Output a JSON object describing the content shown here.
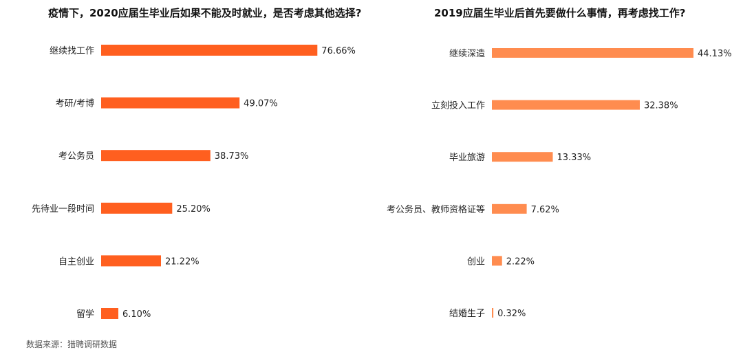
{
  "chart_data": [
    {
      "type": "bar",
      "orientation": "horizontal",
      "title": "疫情下，2020应届生毕业后如果不能及时就业，是否考虑其他选择?",
      "categories": [
        "继续找工作",
        "考研/考博",
        "考公务员",
        "先待业一段时间",
        "自主创业",
        "留学"
      ],
      "values": [
        76.66,
        49.07,
        38.73,
        25.2,
        21.22,
        6.1
      ],
      "value_labels": [
        "76.66%",
        "49.07%",
        "38.73%",
        "25.20%",
        "21.22%",
        "6.10%"
      ],
      "unit": "%",
      "xlim": [
        0,
        80
      ],
      "color": "#ff5f1f",
      "grid": false,
      "legend": "none"
    },
    {
      "type": "bar",
      "orientation": "horizontal",
      "title": "2019应届生毕业后首先要做什么事情，再考虑找工作?",
      "categories": [
        "继续深造",
        "立刻投入工作",
        "毕业旅游",
        "考公务员、教师资格证等",
        "创业",
        "结婚生子"
      ],
      "values": [
        44.13,
        32.38,
        13.33,
        7.62,
        2.22,
        0.32
      ],
      "value_labels": [
        "44.13%",
        "32.38%",
        "13.33%",
        "7.62%",
        "2.22%",
        "0.32%"
      ],
      "unit": "%",
      "xlim": [
        0,
        44.13
      ],
      "color": "#ff8c4f",
      "grid": false,
      "legend": "none"
    }
  ],
  "source": "数据来源：猎聘调研数据"
}
